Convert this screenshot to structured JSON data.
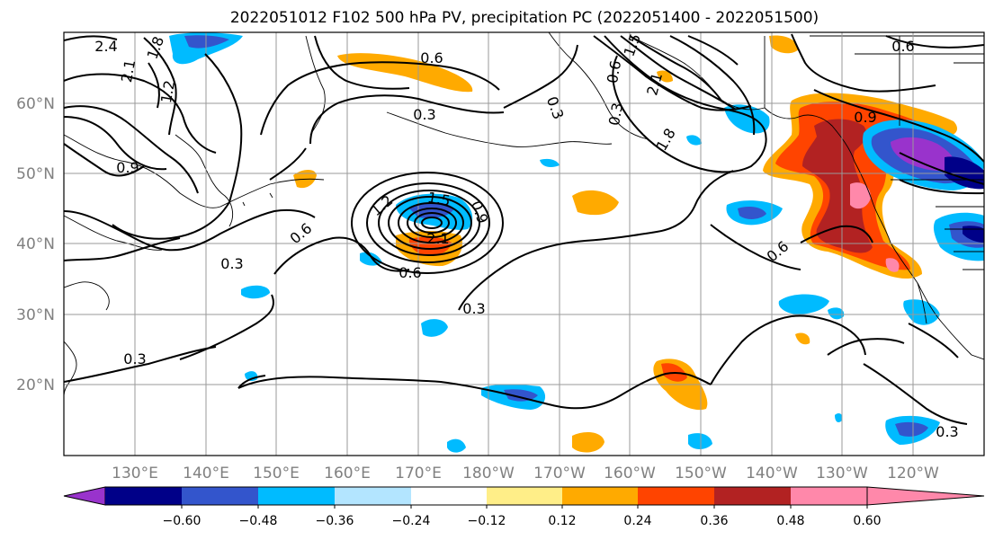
{
  "title": "2022051012 F102 500 hPa PV, precipitation PC (2022051400 - 2022051500)",
  "lat_labels": [
    "60°N",
    "50°N",
    "40°N",
    "30°N",
    "20°N"
  ],
  "lon_labels": [
    "130°E",
    "140°E",
    "150°E",
    "160°E",
    "170°E",
    "180°W",
    "170°W",
    "160°W",
    "150°W",
    "140°W",
    "130°W",
    "120°W"
  ],
  "colorbar": {
    "colors": [
      "#9933cc",
      "#000088",
      "#3355cc",
      "#00bbff",
      "#b3e5ff",
      "#ffffff",
      "#ffee88",
      "#ffaa00",
      "#ff4400",
      "#b22222",
      "#ff88aa"
    ],
    "tick_labels": [
      "−0.60",
      "−0.48",
      "−0.36",
      "−0.24",
      "−0.12",
      "0.12",
      "0.24",
      "0.36",
      "0.48",
      "0.60"
    ]
  },
  "contour_labels": [
    "2.4",
    "2.1",
    "1.8",
    "1.2",
    "0.9",
    "0.3",
    "0.6",
    "0.3",
    "0.6",
    "0.3",
    "1.2",
    "1.5",
    "0.9",
    "2.1",
    "0.6",
    "0.3",
    "0.3",
    "1.5",
    "2.1",
    "1.8",
    "0.6",
    "0.9",
    "0.6",
    "0.3",
    "0.3",
    "0.6"
  ]
}
